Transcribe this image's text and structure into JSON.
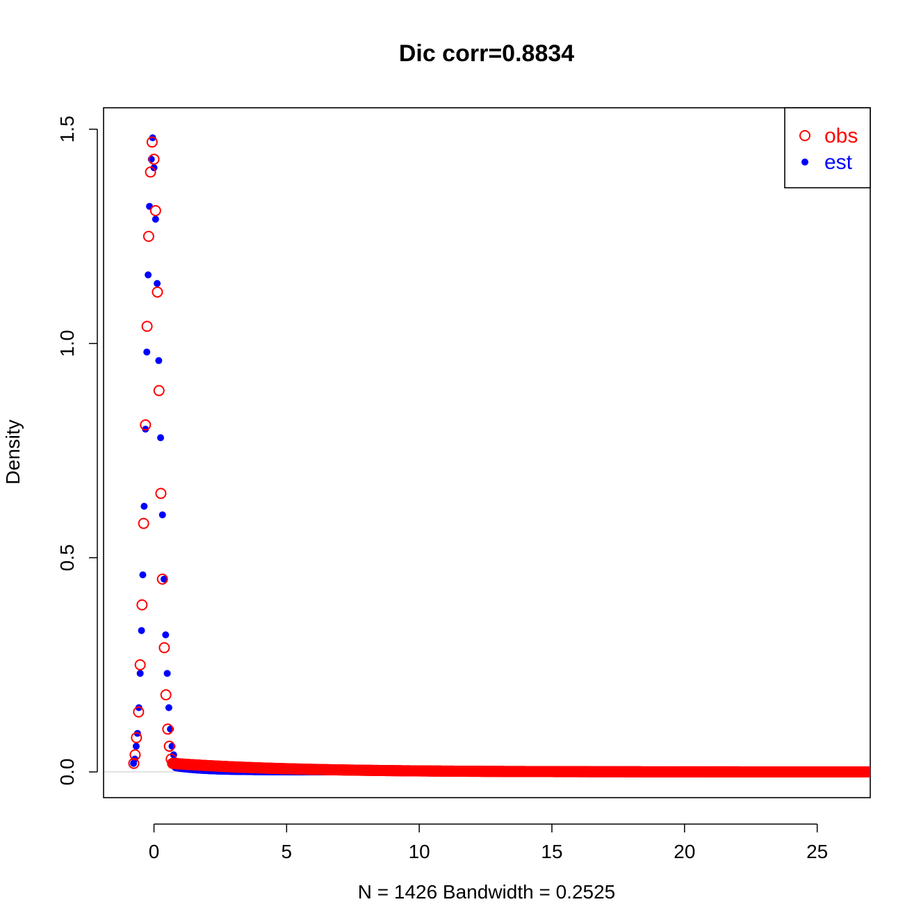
{
  "chart_data": {
    "type": "scatter",
    "title": "Dic corr=0.8834",
    "xlabel": "N = 1426   Bandwidth = 0.2525",
    "ylabel": "Density",
    "xlim": [
      -1.9,
      27.0
    ],
    "ylim": [
      -0.06,
      1.55
    ],
    "x_ticks": [
      0,
      5,
      10,
      15,
      20,
      25
    ],
    "x_tick_labels": [
      "0",
      "5",
      "10",
      "15",
      "20",
      "25"
    ],
    "y_ticks": [
      0.0,
      0.5,
      1.0,
      1.5
    ],
    "y_tick_labels": [
      "0.0",
      "0.5",
      "1.0",
      "1.5"
    ],
    "zero_reference_line": true,
    "legend_position": "top-right",
    "legend": [
      {
        "label": "obs",
        "color": "#ff0000",
        "marker": "open-circle"
      },
      {
        "label": "est",
        "color": "#0000ff",
        "marker": "filled-circle"
      }
    ],
    "series": [
      {
        "name": "obs",
        "color": "#ff0000",
        "marker": "open-circle",
        "points": [
          [
            -0.76,
            0.02
          ],
          [
            -0.71,
            0.04
          ],
          [
            -0.66,
            0.08
          ],
          [
            -0.58,
            0.14
          ],
          [
            -0.52,
            0.25
          ],
          [
            -0.45,
            0.39
          ],
          [
            -0.39,
            0.58
          ],
          [
            -0.32,
            0.81
          ],
          [
            -0.26,
            1.04
          ],
          [
            -0.2,
            1.25
          ],
          [
            -0.13,
            1.4
          ],
          [
            -0.07,
            1.47
          ],
          [
            0.0,
            1.43
          ],
          [
            0.06,
            1.31
          ],
          [
            0.13,
            1.12
          ],
          [
            0.19,
            0.89
          ],
          [
            0.26,
            0.65
          ],
          [
            0.32,
            0.45
          ],
          [
            0.39,
            0.29
          ],
          [
            0.45,
            0.18
          ],
          [
            0.52,
            0.1
          ],
          [
            0.58,
            0.06
          ],
          [
            0.65,
            0.03
          ]
        ],
        "tail": {
          "x_start": 0.7,
          "x_end": 27.0,
          "y_start": 0.02,
          "y_end": 0.0
        }
      },
      {
        "name": "est",
        "color": "#0000ff",
        "marker": "filled-circle",
        "points": [
          [
            -0.77,
            0.02
          ],
          [
            -0.72,
            0.03
          ],
          [
            -0.67,
            0.06
          ],
          [
            -0.62,
            0.09
          ],
          [
            -0.57,
            0.15
          ],
          [
            -0.52,
            0.23
          ],
          [
            -0.47,
            0.33
          ],
          [
            -0.42,
            0.46
          ],
          [
            -0.37,
            0.62
          ],
          [
            -0.32,
            0.8
          ],
          [
            -0.27,
            0.98
          ],
          [
            -0.22,
            1.16
          ],
          [
            -0.17,
            1.32
          ],
          [
            -0.1,
            1.43
          ],
          [
            -0.05,
            1.48
          ],
          [
            0.0,
            1.41
          ],
          [
            0.06,
            1.29
          ],
          [
            0.12,
            1.14
          ],
          [
            0.18,
            0.96
          ],
          [
            0.25,
            0.78
          ],
          [
            0.32,
            0.6
          ],
          [
            0.38,
            0.45
          ],
          [
            0.44,
            0.32
          ],
          [
            0.5,
            0.23
          ],
          [
            0.56,
            0.15
          ],
          [
            0.62,
            0.1
          ],
          [
            0.68,
            0.06
          ],
          [
            0.74,
            0.04
          ]
        ],
        "tail": {
          "x_start": 0.8,
          "x_end": 7.0,
          "y_start": 0.01,
          "y_end": 0.0
        }
      }
    ]
  }
}
